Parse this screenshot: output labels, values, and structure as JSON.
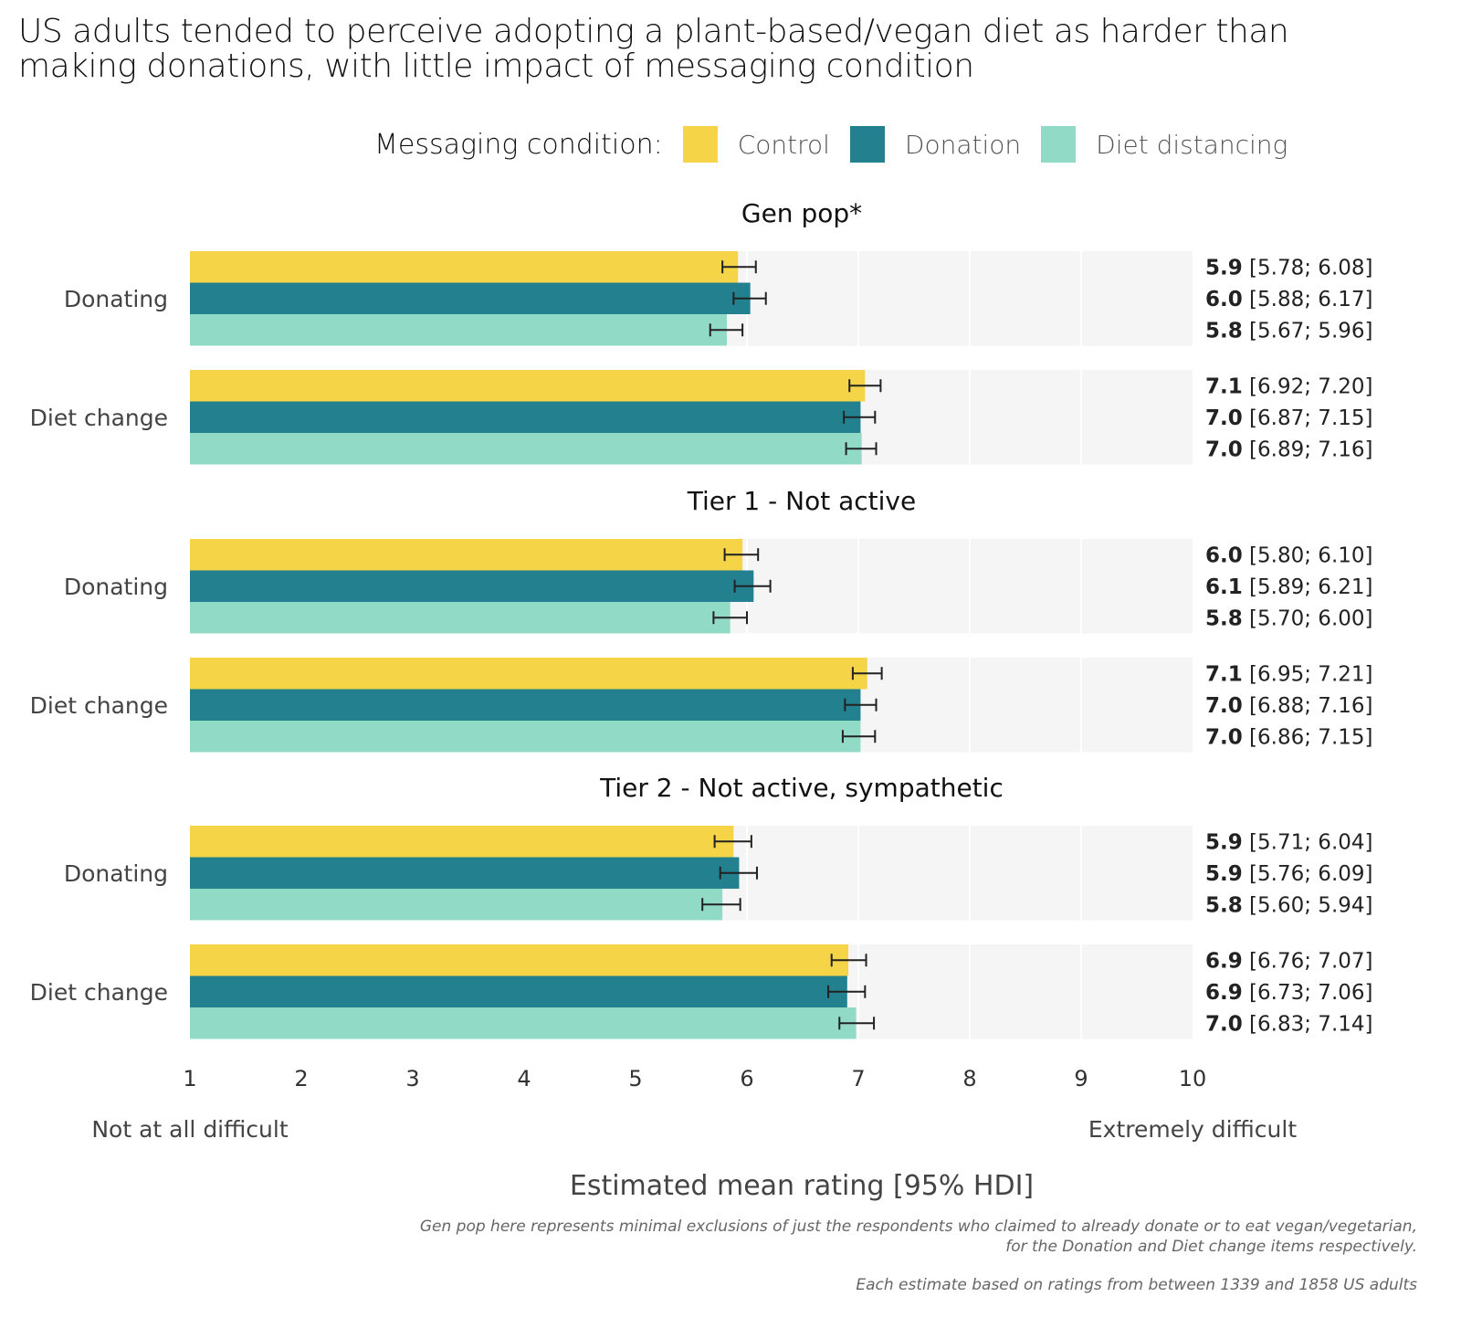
{
  "title": "US adults tended to perceive adopting a plant-based/vegan diet as harder than making donations, with little impact of messaging condition",
  "legend": {
    "title": "Messaging condition:",
    "items": [
      {
        "label": "Control",
        "color": "#f5d547"
      },
      {
        "label": "Donation",
        "color": "#23818f"
      },
      {
        "label": "Diet distancing",
        "color": "#91dbc6"
      }
    ]
  },
  "chart_data": {
    "type": "bar",
    "orientation": "horizontal",
    "title": "US adults tended to perceive adopting a plant-based/vegan diet as harder than making donations, with little impact of messaging condition",
    "xlabel": "Estimated mean rating [95% HDI]",
    "x_anchor_low": "Not at all difficult",
    "x_anchor_high": "Extremely difficult",
    "xlim": [
      1,
      10
    ],
    "xticks": [
      "1",
      "2",
      "3",
      "4",
      "5",
      "6",
      "7",
      "8",
      "9",
      "10"
    ],
    "grid": true,
    "legend_position": "top",
    "series_names": [
      "Control",
      "Donation",
      "Diet distancing"
    ],
    "facets": [
      {
        "title": "Gen pop*",
        "groups": [
          {
            "label": "Donating",
            "bars": [
              {
                "series": "Control",
                "mean": 5.92,
                "label": "5.9",
                "lo": 5.78,
                "hi": 6.08,
                "ci": "[5.78; 6.08]"
              },
              {
                "series": "Donation",
                "mean": 6.03,
                "label": "6.0",
                "lo": 5.88,
                "hi": 6.17,
                "ci": "[5.88; 6.17]"
              },
              {
                "series": "Diet distancing",
                "mean": 5.82,
                "label": "5.8",
                "lo": 5.67,
                "hi": 5.96,
                "ci": "[5.67; 5.96]"
              }
            ]
          },
          {
            "label": "Diet change",
            "bars": [
              {
                "series": "Control",
                "mean": 7.06,
                "label": "7.1",
                "lo": 6.92,
                "hi": 7.2,
                "ci": "[6.92; 7.20]"
              },
              {
                "series": "Donation",
                "mean": 7.02,
                "label": "7.0",
                "lo": 6.87,
                "hi": 7.15,
                "ci": "[6.87; 7.15]"
              },
              {
                "series": "Diet distancing",
                "mean": 7.03,
                "label": "7.0",
                "lo": 6.89,
                "hi": 7.16,
                "ci": "[6.89; 7.16]"
              }
            ]
          }
        ]
      },
      {
        "title": "Tier 1 - Not active",
        "groups": [
          {
            "label": "Donating",
            "bars": [
              {
                "series": "Control",
                "mean": 5.96,
                "label": "6.0",
                "lo": 5.8,
                "hi": 6.1,
                "ci": "[5.80; 6.10]"
              },
              {
                "series": "Donation",
                "mean": 6.06,
                "label": "6.1",
                "lo": 5.89,
                "hi": 6.21,
                "ci": "[5.89; 6.21]"
              },
              {
                "series": "Diet distancing",
                "mean": 5.85,
                "label": "5.8",
                "lo": 5.7,
                "hi": 6.0,
                "ci": "[5.70; 6.00]"
              }
            ]
          },
          {
            "label": "Diet change",
            "bars": [
              {
                "series": "Control",
                "mean": 7.08,
                "label": "7.1",
                "lo": 6.95,
                "hi": 7.21,
                "ci": "[6.95; 7.21]"
              },
              {
                "series": "Donation",
                "mean": 7.02,
                "label": "7.0",
                "lo": 6.88,
                "hi": 7.16,
                "ci": "[6.88; 7.16]"
              },
              {
                "series": "Diet distancing",
                "mean": 7.02,
                "label": "7.0",
                "lo": 6.86,
                "hi": 7.15,
                "ci": "[6.86; 7.15]"
              }
            ]
          }
        ]
      },
      {
        "title": "Tier 2 - Not active, sympathetic",
        "groups": [
          {
            "label": "Donating",
            "bars": [
              {
                "series": "Control",
                "mean": 5.88,
                "label": "5.9",
                "lo": 5.71,
                "hi": 6.04,
                "ci": "[5.71; 6.04]"
              },
              {
                "series": "Donation",
                "mean": 5.93,
                "label": "5.9",
                "lo": 5.76,
                "hi": 6.09,
                "ci": "[5.76; 6.09]"
              },
              {
                "series": "Diet distancing",
                "mean": 5.78,
                "label": "5.8",
                "lo": 5.6,
                "hi": 5.94,
                "ci": "[5.60; 5.94]"
              }
            ]
          },
          {
            "label": "Diet change",
            "bars": [
              {
                "series": "Control",
                "mean": 6.91,
                "label": "6.9",
                "lo": 6.76,
                "hi": 7.07,
                "ci": "[6.76; 7.07]"
              },
              {
                "series": "Donation",
                "mean": 6.9,
                "label": "6.9",
                "lo": 6.73,
                "hi": 7.06,
                "ci": "[6.73; 7.06]"
              },
              {
                "series": "Diet distancing",
                "mean": 6.98,
                "label": "7.0",
                "lo": 6.83,
                "hi": 7.14,
                "ci": "[6.83; 7.14]"
              }
            ]
          }
        ]
      }
    ]
  },
  "notes": {
    "line1": "Gen pop here represents minimal exclusions of just the respondents who claimed to already donate or to eat vegan/vegetarian,",
    "line2": "for the Donation and Diet change items respectively.",
    "line3": "Each estimate based on ratings from between 1339 and 1858 US adults"
  }
}
